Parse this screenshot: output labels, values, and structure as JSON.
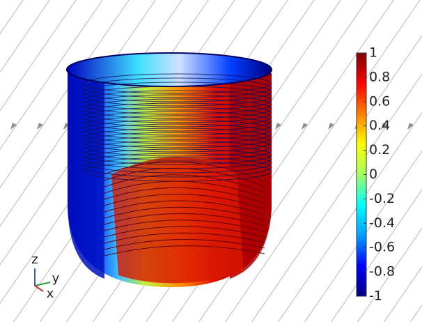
{
  "chart_data": {
    "type": "surface",
    "colorbar": {
      "lim": [
        -1,
        1
      ],
      "ticks": [
        1,
        0.8,
        0.6,
        0.4,
        0.2,
        0,
        -0.2,
        -0.4,
        -0.6,
        -0.8,
        -1
      ],
      "colormap": [
        "#00007f",
        "#0000ff",
        "#00a0ff",
        "#00ffff",
        "#a0ff60",
        "#ffff00",
        "#ff8000",
        "#ff0000",
        "#7f0000"
      ]
    },
    "axis_labels": {
      "z": "z",
      "y": "y",
      "x": "x"
    }
  }
}
